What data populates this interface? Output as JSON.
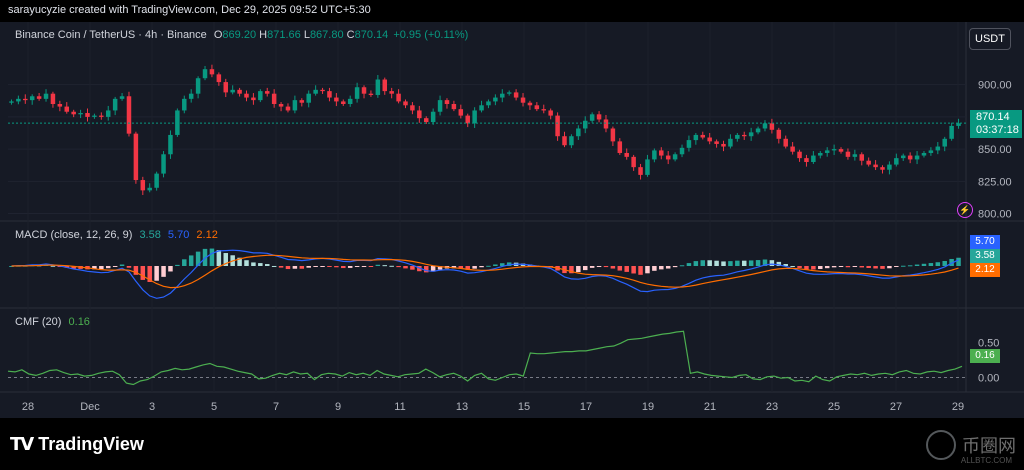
{
  "credit": "sarayucyzie created with TradingView.com, Dec 29, 2025 09:52 UTC+5:30",
  "currency_button": "USDT",
  "symbol": {
    "name": "Binance Coin / TetherUS · 4h · Binance",
    "o_label": "O",
    "o": "869.20",
    "h_label": "H",
    "h": "871.66",
    "l_label": "L",
    "l": "867.80",
    "c_label": "C",
    "c": "870.14",
    "change": "+0.95 (+0.11%)"
  },
  "price_tag": {
    "price": "870.14",
    "countdown": "03:37:18"
  },
  "macd_legend": {
    "title": "MACD (close, 12, 26, 9)",
    "hist": "3.58",
    "macd": "5.70",
    "signal": "2.12"
  },
  "macd_tags": {
    "macd": "5.70",
    "hist": "3.58",
    "signal": "2.12"
  },
  "cmf_legend": {
    "title": "CMF (20)",
    "value": "0.16"
  },
  "cmf_tag": "0.16",
  "footer": {
    "brand": "TradingView",
    "watermark": "币圈网",
    "watermark_sub": "ALLBTC.COM"
  },
  "colors": {
    "up": "#089981",
    "down": "#f23645",
    "macd": "#2962ff",
    "signal": "#ff6d00",
    "cmf": "#4caf50",
    "bg": "#161a25"
  },
  "chart_data": [
    {
      "type": "candlestick",
      "title": "Binance Coin / TetherUS · 4h · Binance",
      "x_tick_labels": [
        "28",
        "Dec",
        "3",
        "5",
        "7",
        "9",
        "11",
        "13",
        "15",
        "17",
        "19",
        "21",
        "23",
        "25",
        "27",
        "29"
      ],
      "y_tick_labels": [
        "900.00",
        "875.00",
        "850.00",
        "825.00",
        "800.00"
      ],
      "ylim": [
        795,
        930
      ],
      "close_series": [
        887,
        889,
        888,
        891,
        889,
        893,
        885,
        883,
        879,
        877,
        878,
        875,
        876,
        875,
        880,
        889,
        891,
        862,
        826,
        818,
        820,
        831,
        846,
        861,
        880,
        889,
        893,
        905,
        912,
        908,
        902,
        894,
        896,
        893,
        890,
        888,
        895,
        893,
        885,
        883,
        880,
        888,
        886,
        893,
        896,
        895,
        890,
        887,
        885,
        889,
        898,
        893,
        892,
        904,
        895,
        893,
        887,
        884,
        880,
        874,
        871,
        879,
        888,
        885,
        881,
        876,
        870,
        880,
        884,
        887,
        890,
        893,
        894,
        890,
        886,
        884,
        881,
        880,
        876,
        860,
        853,
        860,
        866,
        872,
        877,
        873,
        866,
        856,
        847,
        844,
        836,
        830,
        842,
        849,
        845,
        842,
        846,
        851,
        857,
        861,
        859,
        856,
        854,
        852,
        858,
        861,
        860,
        863,
        866,
        870,
        865,
        858,
        852,
        848,
        843,
        840,
        845,
        847,
        849,
        850,
        848,
        844,
        846,
        841,
        838,
        836,
        834,
        838,
        843,
        845,
        842,
        845,
        847,
        849,
        852,
        858,
        868,
        870
      ],
      "last": 870.14
    },
    {
      "type": "macd",
      "title": "MACD (close, 12, 26, 9)",
      "macd": 5.7,
      "signal": 2.12,
      "histogram": 3.58
    },
    {
      "type": "line",
      "title": "CMF (20)",
      "y_tick_labels": [
        "0.50",
        "0.00"
      ],
      "ylim": [
        -0.15,
        0.85
      ],
      "values": [
        0.09,
        0.08,
        0.11,
        0.05,
        0.03,
        0.06,
        0.1,
        0.11,
        0.07,
        0.04,
        0.05,
        0.02,
        0.03,
        0.06,
        0.08,
        0.09,
        0.04,
        -0.08,
        -0.1,
        -0.05,
        -0.03,
        0.02,
        0.08,
        0.1,
        0.13,
        0.11,
        0.12,
        0.15,
        0.18,
        0.2,
        0.16,
        0.15,
        0.12,
        0.09,
        0.07,
        0.05,
        -0.02,
        -0.01,
        0.03,
        0.06,
        0.04,
        0.08,
        0.05,
        0.06,
        -0.03,
        0.04,
        0.06,
        0.05,
        0.02,
        0.07,
        0.04,
        0.06,
        0.03,
        0.1,
        0.05,
        0.03,
        0.01,
        0.04,
        0.05,
        0.06,
        0.12,
        0.07,
        0.01,
        0.04,
        0.06,
        0.02,
        -0.05,
        0.03,
        0.06,
        -0.02,
        -0.04,
        0.0,
        0.04,
        0.05,
        0.02,
        0.35,
        0.34,
        0.34,
        0.35,
        0.36,
        0.37,
        0.37,
        0.38,
        0.38,
        0.4,
        0.42,
        0.44,
        0.45,
        0.49,
        0.54,
        0.55,
        0.56,
        0.58,
        0.6,
        0.62,
        0.63,
        0.65,
        0.66,
        0.06,
        0.08,
        0.05,
        0.03,
        0.02,
        0.01,
        0.0,
        0.03,
        0.04,
        -0.02,
        -0.03,
        0.01,
        0.02,
        -0.01,
        0.0,
        -0.05,
        -0.04,
        -0.06,
        0.02,
        -0.03,
        -0.05,
        0.01,
        0.03,
        0.05,
        0.04,
        0.06,
        0.03,
        0.05,
        0.06,
        0.04,
        0.08,
        0.1,
        0.06,
        0.05,
        0.08,
        0.09,
        0.07,
        0.1,
        0.12,
        0.16
      ]
    }
  ]
}
